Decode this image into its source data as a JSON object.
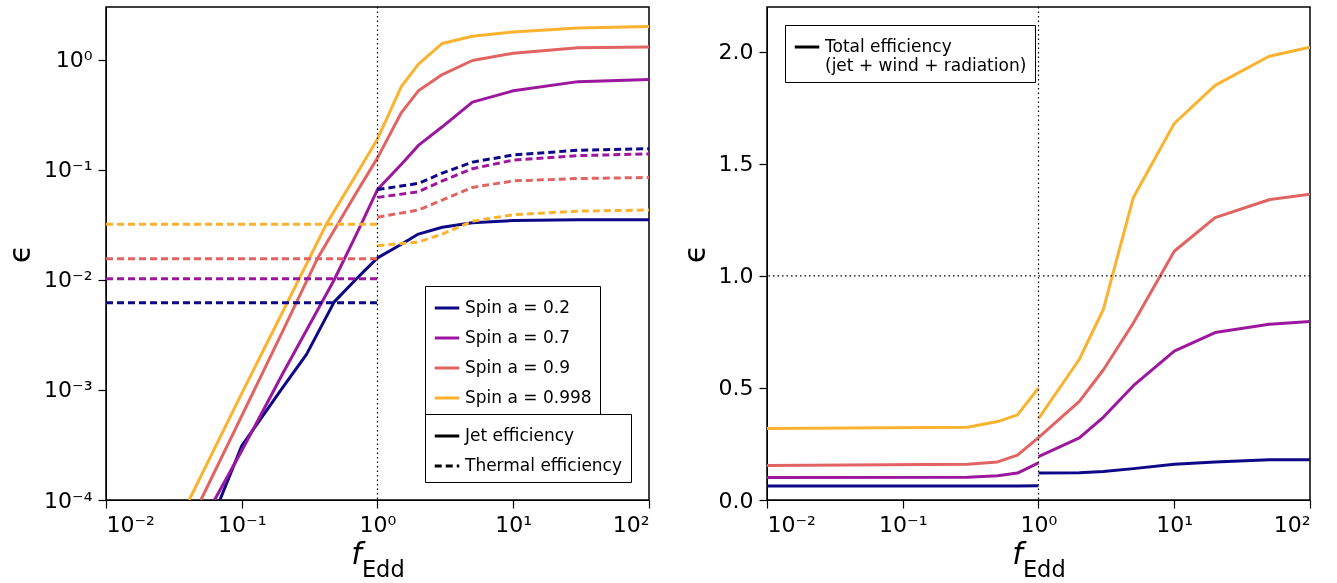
{
  "chart_data": [
    {
      "type": "line",
      "xlabel": "f$_{Edd}$",
      "ylabel": "ϵ",
      "log": "xy",
      "legend": "bottom right",
      "xlim": [
        0.01,
        100
      ],
      "xticks": [
        {
          "value": 0.01,
          "label": "10⁻²"
        },
        {
          "value": 0.1,
          "label": "10⁻¹"
        },
        {
          "value": 1,
          "label": "10⁰"
        },
        {
          "value": 10,
          "label": "10¹"
        },
        {
          "value": 100,
          "label": "10²"
        }
      ],
      "ylim": [
        0.0001,
        3
      ],
      "yticks": [
        {
          "value": 0.0001,
          "label": "10⁻⁴"
        },
        {
          "value": 0.001,
          "label": "10⁻³"
        },
        {
          "value": 0.01,
          "label": "10⁻²"
        },
        {
          "value": 0.1,
          "label": "10⁻¹"
        },
        {
          "value": 1,
          "label": "10⁰"
        }
      ],
      "annotations": [
        "Jet efficiency",
        "Thermal efficiency"
      ],
      "ref_lines": [
        {
          "axis": "x",
          "value": 1,
          "color": "#000000",
          "line_style": "dotted"
        }
      ],
      "series": [
        {
          "name": "Spin a = 0.2",
          "color": "#0d0887",
          "line_style": "solid",
          "x": [
            0.069,
            0.1,
            0.2,
            0.3,
            0.48,
            0.7,
            1,
            1.5,
            2,
            3,
            5,
            10,
            30,
            100
          ],
          "values": [
            0.0001,
            0.00031,
            0.00105,
            0.0021,
            0.0063,
            0.0102,
            0.0158,
            0.021,
            0.026,
            0.03,
            0.033,
            0.0345,
            0.035,
            0.035
          ]
        },
        {
          "name": "Spin a = 0.7",
          "color": "#9c179e",
          "line_style": "solid",
          "x": [
            0.063,
            0.1,
            0.2,
            0.48,
            0.7,
            1,
            1.5,
            2,
            3,
            5,
            10,
            30,
            100
          ],
          "values": [
            0.0001,
            0.00028,
            0.0014,
            0.01,
            0.026,
            0.066,
            0.112,
            0.166,
            0.245,
            0.41,
            0.52,
            0.63,
            0.66
          ]
        },
        {
          "name": "Spin a = 0.9",
          "color": "#e16462",
          "line_style": "solid",
          "x": [
            0.05,
            0.1,
            0.2,
            0.36,
            0.7,
            1,
            1.5,
            2,
            3,
            5,
            10,
            30,
            100
          ],
          "values": [
            0.0001,
            0.00058,
            0.0034,
            0.0155,
            0.062,
            0.128,
            0.33,
            0.52,
            0.73,
            0.98,
            1.14,
            1.28,
            1.3
          ]
        },
        {
          "name": "Spin a = 0.998",
          "color": "#fbb32f",
          "line_style": "solid",
          "x": [
            0.041,
            0.1,
            0.2,
            0.42,
            0.7,
            1,
            1.5,
            2,
            3,
            5,
            10,
            30,
            100
          ],
          "values": [
            0.0001,
            0.00093,
            0.0051,
            0.032,
            0.091,
            0.19,
            0.57,
            0.91,
            1.4,
            1.63,
            1.78,
            1.93,
            2.0
          ]
        },
        {
          "color": "#0d0887",
          "line_style": "dashed",
          "x": [
            0.01,
            1,
            null,
            1,
            2,
            3,
            5,
            10,
            30,
            100
          ],
          "values": [
            0.0062,
            0.0062,
            null,
            0.066,
            0.075,
            0.093,
            0.117,
            0.136,
            0.15,
            0.155
          ]
        },
        {
          "color": "#9c179e",
          "line_style": "dashed",
          "x": [
            0.01,
            1,
            null,
            1,
            2,
            3,
            5,
            10,
            30,
            100
          ],
          "values": [
            0.0102,
            0.0102,
            null,
            0.056,
            0.063,
            0.079,
            0.102,
            0.122,
            0.134,
            0.139
          ]
        },
        {
          "color": "#e16462",
          "line_style": "dashed",
          "x": [
            0.01,
            1,
            null,
            1,
            2,
            3,
            5,
            10,
            30,
            100
          ],
          "values": [
            0.0155,
            0.0155,
            null,
            0.037,
            0.043,
            0.053,
            0.069,
            0.079,
            0.083,
            0.085
          ]
        },
        {
          "color": "#fbb32f",
          "line_style": "dashed",
          "x": [
            0.01,
            1,
            null,
            1,
            2,
            3,
            5,
            10,
            30,
            100
          ],
          "values": [
            0.032,
            0.032,
            null,
            0.0204,
            0.022,
            0.026,
            0.034,
            0.039,
            0.042,
            0.043
          ]
        }
      ]
    },
    {
      "type": "line",
      "xlabel": "f$_{Edd}$",
      "ylabel": "ϵ",
      "log": "x",
      "legend": "top left",
      "xlim": [
        0.01,
        100
      ],
      "xticks": [
        {
          "value": 0.01,
          "label": "10⁻²"
        },
        {
          "value": 0.1,
          "label": "10⁻¹"
        },
        {
          "value": 1,
          "label": "10⁰"
        },
        {
          "value": 10,
          "label": "10¹"
        },
        {
          "value": 100,
          "label": "10²"
        }
      ],
      "ylim": [
        0,
        2.2
      ],
      "yticks": [
        {
          "value": 0,
          "label": "0.0"
        },
        {
          "value": 0.5,
          "label": "0.5"
        },
        {
          "value": 1,
          "label": "1.0"
        },
        {
          "value": 1.5,
          "label": "1.5"
        },
        {
          "value": 2,
          "label": "2.0"
        }
      ],
      "annotations": [
        "Total efficiency\n (jet + wind + radiation)"
      ],
      "ref_lines": [
        {
          "axis": "x",
          "value": 1,
          "color": "#000000",
          "line_style": "dotted"
        },
        {
          "axis": "y",
          "value": 1,
          "color": "#000000",
          "line_style": "dotted"
        }
      ],
      "series": [
        {
          "color": "#0d0887",
          "line_style": "solid",
          "x": [
            0.01,
            0.3,
            0.5,
            0.7,
            1,
            null,
            1,
            2,
            3,
            5,
            10,
            20,
            50,
            100
          ],
          "values": [
            0.062,
            0.062,
            0.063,
            0.063,
            0.064,
            null,
            0.12,
            0.122,
            0.127,
            0.14,
            0.16,
            0.17,
            0.18,
            0.18
          ]
        },
        {
          "color": "#9c179e",
          "line_style": "solid",
          "x": [
            0.01,
            0.3,
            0.5,
            0.7,
            1,
            null,
            1,
            2,
            3,
            5,
            10,
            20,
            50,
            100
          ],
          "values": [
            0.1,
            0.102,
            0.108,
            0.12,
            0.166,
            null,
            0.194,
            0.277,
            0.369,
            0.51,
            0.664,
            0.747,
            0.784,
            0.797
          ]
        },
        {
          "color": "#e16462",
          "line_style": "solid",
          "x": [
            0.01,
            0.3,
            0.5,
            0.7,
            1,
            2,
            3,
            5,
            10,
            20,
            50,
            100
          ],
          "values": [
            0.154,
            0.16,
            0.17,
            0.2,
            0.278,
            0.44,
            0.58,
            0.79,
            1.11,
            1.26,
            1.34,
            1.365
          ]
        },
        {
          "color": "#fbb32f",
          "line_style": "solid",
          "x": [
            0.01,
            0.3,
            0.5,
            0.7,
            1,
            null,
            1,
            2,
            3,
            5,
            10,
            20,
            50,
            100
          ],
          "values": [
            0.319,
            0.325,
            0.35,
            0.38,
            0.5,
            null,
            0.363,
            0.628,
            0.85,
            1.35,
            1.68,
            1.85,
            1.98,
            2.02
          ]
        }
      ]
    }
  ]
}
